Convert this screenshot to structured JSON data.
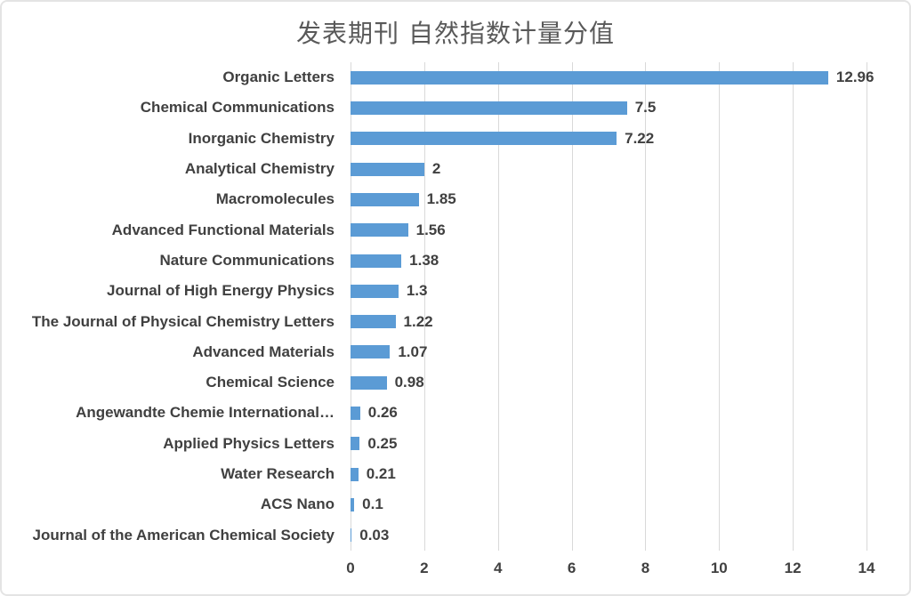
{
  "chart_data": {
    "type": "bar",
    "orientation": "horizontal",
    "title": "发表期刊 自然指数计量分值",
    "categories": [
      "Organic Letters",
      "Chemical Communications",
      "Inorganic Chemistry",
      "Analytical Chemistry",
      "Macromolecules",
      "Advanced Functional Materials",
      "Nature Communications",
      "Journal of High Energy Physics",
      "The Journal of Physical Chemistry Letters",
      "Advanced Materials",
      "Chemical Science",
      "Angewandte Chemie International…",
      "Applied Physics Letters",
      "Water Research",
      "ACS Nano",
      "Journal of the American Chemical Society"
    ],
    "values": [
      12.96,
      7.5,
      7.22,
      2,
      1.85,
      1.56,
      1.38,
      1.3,
      1.22,
      1.07,
      0.98,
      0.26,
      0.25,
      0.21,
      0.1,
      0.03
    ],
    "value_labels": [
      "12.96",
      "7.5",
      "7.22",
      "2",
      "1.85",
      "1.56",
      "1.38",
      "1.3",
      "1.22",
      "1.07",
      "0.98",
      "0.26",
      "0.25",
      "0.21",
      "0.1",
      "0.03"
    ],
    "x_ticks": [
      0,
      2,
      4,
      6,
      8,
      10,
      12,
      14
    ],
    "x_tick_labels": [
      "0",
      "2",
      "4",
      "6",
      "8",
      "10",
      "12",
      "14"
    ],
    "xlabel": "",
    "ylabel": "",
    "xlim": [
      0,
      14
    ],
    "grid": true,
    "legend": false,
    "colors": {
      "bar": "#5B9BD5",
      "gridline": "#D9D9D9",
      "label_text": "#404040",
      "tick_text": "#404040",
      "title_text": "#595959",
      "card_border": "#E4E4E4",
      "background": "#FFFFFF"
    }
  }
}
